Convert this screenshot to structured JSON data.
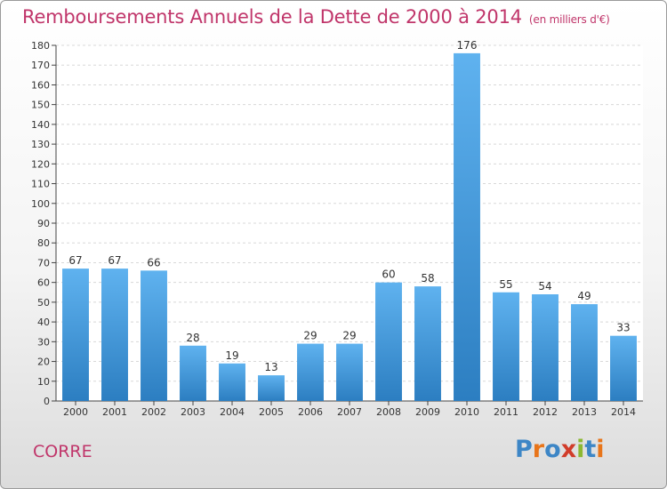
{
  "title": "Remboursements Annuels de la Dette de 2000 à 2014",
  "title_unit": "(en milliers d'€)",
  "town": "CORRE",
  "logo_text": "Proxiti",
  "colors": {
    "title": "#c0356a",
    "bar_top": "#5fb2ef",
    "bar_bottom": "#2c7ec1",
    "grid": "#d8d8d8",
    "logo_letters": [
      "#3d86c6",
      "#e8751a",
      "#3d86c6",
      "#d13c2a",
      "#8cb832",
      "#3d86c6",
      "#e8751a"
    ]
  },
  "chart_data": {
    "type": "bar",
    "categories": [
      "2000",
      "2001",
      "2002",
      "2003",
      "2004",
      "2005",
      "2006",
      "2007",
      "2008",
      "2009",
      "2010",
      "2011",
      "2012",
      "2013",
      "2014"
    ],
    "values": [
      67,
      67,
      66,
      28,
      19,
      13,
      29,
      29,
      60,
      58,
      176,
      55,
      54,
      49,
      33
    ],
    "ylim": [
      0,
      180
    ],
    "yticks": [
      0,
      10,
      20,
      30,
      40,
      50,
      60,
      70,
      80,
      90,
      100,
      110,
      120,
      130,
      140,
      150,
      160,
      170,
      180
    ],
    "grid": true,
    "data_labels": true
  }
}
